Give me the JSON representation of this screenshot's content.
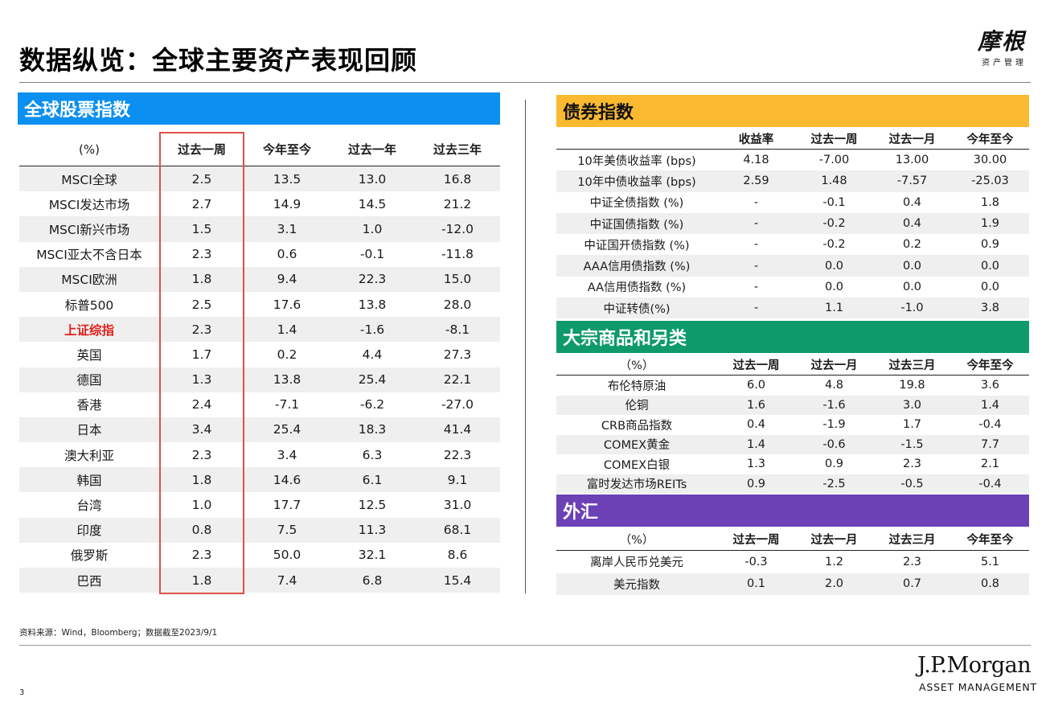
{
  "title": "数据纵览：全球主要资产表现回顾",
  "logo": {
    "cn": "摩根",
    "sub": "资产管理"
  },
  "equity": {
    "section_title": "全球股票指数",
    "header_color": "#0b8ff0",
    "columns": [
      "(%)",
      "过去一周",
      "今年至今",
      "过去一年",
      "过去三年"
    ],
    "rows": [
      [
        "MSCI全球",
        "2.5",
        "13.5",
        "13.0",
        "16.8"
      ],
      [
        "MSCI发达市场",
        "2.7",
        "14.9",
        "14.5",
        "21.2"
      ],
      [
        "MSCI新兴市场",
        "1.5",
        "3.1",
        "1.0",
        "-12.0"
      ],
      [
        "MSCI亚太不含日本",
        "2.3",
        "0.6",
        "-0.1",
        "-11.8"
      ],
      [
        "MSCI欧洲",
        "1.8",
        "9.4",
        "22.3",
        "15.0"
      ],
      [
        "标普500",
        "2.5",
        "17.6",
        "13.8",
        "28.0"
      ],
      [
        "上证综指",
        "2.3",
        "1.4",
        "-1.6",
        "-8.1"
      ],
      [
        "英国",
        "1.7",
        "0.2",
        "4.4",
        "27.3"
      ],
      [
        "德国",
        "1.3",
        "13.8",
        "25.4",
        "22.1"
      ],
      [
        "香港",
        "2.4",
        "-7.1",
        "-6.2",
        "-27.0"
      ],
      [
        "日本",
        "3.4",
        "25.4",
        "18.3",
        "41.4"
      ],
      [
        "澳大利亚",
        "2.3",
        "3.4",
        "6.3",
        "22.3"
      ],
      [
        "韩国",
        "1.8",
        "14.6",
        "6.1",
        "9.1"
      ],
      [
        "台湾",
        "1.0",
        "17.7",
        "12.5",
        "31.0"
      ],
      [
        "印度",
        "0.8",
        "7.5",
        "11.3",
        "68.1"
      ],
      [
        "俄罗斯",
        "2.3",
        "50.0",
        "32.1",
        "8.6"
      ],
      [
        "巴西",
        "1.8",
        "7.4",
        "6.8",
        "15.4"
      ]
    ],
    "highlight_row": "上证综指",
    "highlight_color": "#e0201b"
  },
  "bonds": {
    "section_title": "债券指数",
    "header_color": "#fbb930",
    "columns": [
      "",
      "收益率",
      "过去一周",
      "过去一月",
      "今年至今"
    ],
    "rows": [
      [
        "10年美债收益率 (bps)",
        "4.18",
        "-7.00",
        "13.00",
        "30.00"
      ],
      [
        "10年中债收益率 (bps)",
        "2.59",
        "1.48",
        "-7.57",
        "-25.03"
      ],
      [
        "中证全债指数 (%)",
        "-",
        "-0.1",
        "0.4",
        "1.8"
      ],
      [
        "中证国债指数 (%)",
        "-",
        "-0.2",
        "0.4",
        "1.9"
      ],
      [
        "中证国开债指数 (%)",
        "-",
        "-0.2",
        "0.2",
        "0.9"
      ],
      [
        "AAA信用债指数 (%)",
        "-",
        "0.0",
        "0.0",
        "0.0"
      ],
      [
        "AA信用债指数 (%)",
        "-",
        "0.0",
        "0.0",
        "0.0"
      ],
      [
        "中证转债(%)",
        "-",
        "1.1",
        "-1.0",
        "3.8"
      ]
    ]
  },
  "commodities": {
    "section_title": "大宗商品和另类",
    "header_color": "#0e9a6b",
    "columns": [
      "（%）",
      "过去一周",
      "过去一月",
      "过去三月",
      "今年至今"
    ],
    "rows": [
      [
        "布伦特原油",
        "6.0",
        "4.8",
        "19.8",
        "3.6"
      ],
      [
        "伦铜",
        "1.6",
        "-1.6",
        "3.0",
        "1.4"
      ],
      [
        "CRB商品指数",
        "0.4",
        "-1.9",
        "1.7",
        "-0.4"
      ],
      [
        "COMEX黄金",
        "1.4",
        "-0.6",
        "-1.5",
        "7.7"
      ],
      [
        "COMEX白银",
        "1.3",
        "0.9",
        "2.3",
        "2.1"
      ],
      [
        "富时发达市场REITs",
        "0.9",
        "-2.5",
        "-0.5",
        "-0.4"
      ]
    ]
  },
  "fx": {
    "section_title": "外汇",
    "header_color": "#6c41b5",
    "columns": [
      "（%）",
      "过去一周",
      "过去一月",
      "过去三月",
      "今年至今"
    ],
    "rows": [
      [
        "离岸人民币兑美元",
        "-0.3",
        "1.2",
        "2.3",
        "5.1"
      ],
      [
        "美元指数",
        "0.1",
        "2.0",
        "0.7",
        "0.8"
      ]
    ]
  },
  "source": "资料来源：Wind，Bloomberg；数据截至2023/9/1",
  "page_number": "3",
  "brand": {
    "name": "J.P.Morgan",
    "sub": "ASSET MANAGEMENT"
  }
}
